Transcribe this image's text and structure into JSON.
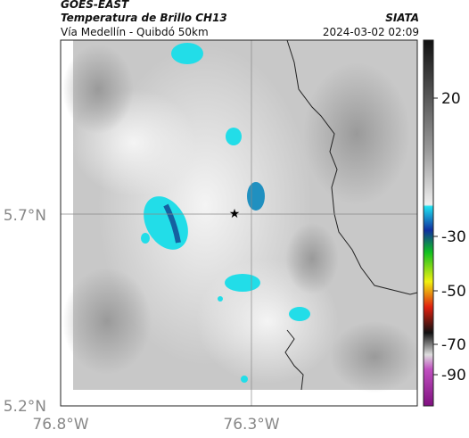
{
  "header": {
    "source": "GOES-EAST",
    "product": "Temperatura de Brillo CH13",
    "route": "Vía Medellín - Quibdó 50km",
    "agency": "SIATA",
    "datetime": "2024-03-02 02:09"
  },
  "map": {
    "lat_labels": [
      "5.7°N",
      "5.2°N"
    ],
    "lon_labels": [
      "76.8°W",
      "76.3°W"
    ]
  },
  "colorbar": {
    "ticks": [
      20,
      -30,
      -50,
      -70,
      -90
    ]
  }
}
